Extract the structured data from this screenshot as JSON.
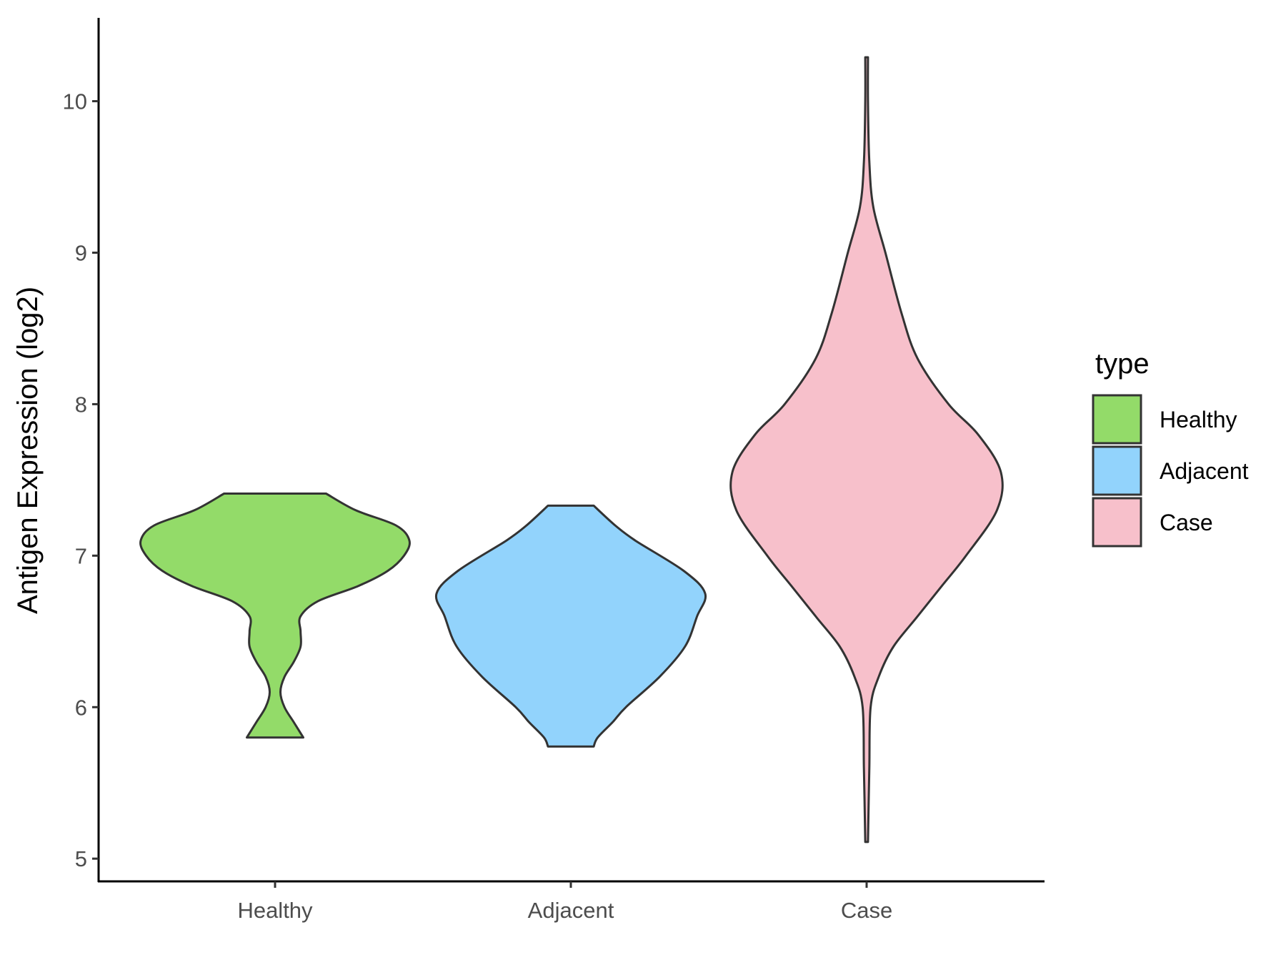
{
  "chart_data": {
    "type": "violin",
    "ylabel": "Antigen Expression (log2)",
    "xlabel": "",
    "ylim": [
      4.85,
      10.55
    ],
    "yticks": [
      5,
      6,
      7,
      8,
      9,
      10
    ],
    "categories": [
      "Healthy",
      "Adjacent",
      "Case"
    ],
    "legend": {
      "title": "type",
      "position": "right",
      "entries": [
        "Healthy",
        "Adjacent",
        "Case"
      ]
    },
    "grid": false,
    "series": [
      {
        "name": "Healthy",
        "color": "#93DB69",
        "min": 5.8,
        "max": 7.41,
        "density_profile": [
          [
            5.8,
            0.21
          ],
          [
            5.9,
            0.14
          ],
          [
            6.0,
            0.07
          ],
          [
            6.1,
            0.04
          ],
          [
            6.2,
            0.07
          ],
          [
            6.3,
            0.14
          ],
          [
            6.4,
            0.19
          ],
          [
            6.5,
            0.19
          ],
          [
            6.6,
            0.19
          ],
          [
            6.7,
            0.32
          ],
          [
            6.8,
            0.62
          ],
          [
            6.9,
            0.84
          ],
          [
            7.0,
            0.96
          ],
          [
            7.1,
            1.0
          ],
          [
            7.2,
            0.9
          ],
          [
            7.3,
            0.6
          ],
          [
            7.41,
            0.38
          ]
        ]
      },
      {
        "name": "Adjacent",
        "color": "#92D3FC",
        "min": 5.74,
        "max": 7.33,
        "density_profile": [
          [
            5.74,
            0.17
          ],
          [
            5.8,
            0.2
          ],
          [
            5.9,
            0.31
          ],
          [
            6.0,
            0.41
          ],
          [
            6.2,
            0.66
          ],
          [
            6.4,
            0.85
          ],
          [
            6.6,
            0.94
          ],
          [
            6.75,
            1.0
          ],
          [
            6.9,
            0.84
          ],
          [
            7.1,
            0.48
          ],
          [
            7.2,
            0.33
          ],
          [
            7.33,
            0.17
          ]
        ]
      },
      {
        "name": "Case",
        "color": "#F7C0CB",
        "min": 5.11,
        "max": 10.29,
        "density_profile": [
          [
            5.11,
            0.01
          ],
          [
            5.6,
            0.02
          ],
          [
            6.0,
            0.03
          ],
          [
            6.2,
            0.09
          ],
          [
            6.4,
            0.2
          ],
          [
            6.6,
            0.38
          ],
          [
            6.8,
            0.56
          ],
          [
            7.0,
            0.74
          ],
          [
            7.3,
            0.97
          ],
          [
            7.55,
            1.0
          ],
          [
            7.8,
            0.83
          ],
          [
            8.0,
            0.61
          ],
          [
            8.3,
            0.38
          ],
          [
            8.6,
            0.26
          ],
          [
            9.0,
            0.14
          ],
          [
            9.3,
            0.05
          ],
          [
            9.6,
            0.02
          ],
          [
            10.0,
            0.01
          ],
          [
            10.29,
            0.01
          ]
        ]
      }
    ]
  }
}
